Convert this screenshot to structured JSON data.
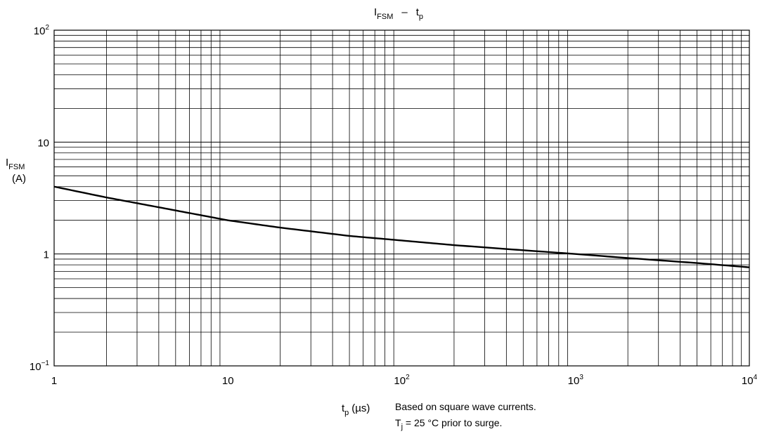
{
  "chart_data": {
    "type": "line",
    "title": {
      "main": "I",
      "main_sub": "FSM",
      "dash": "–",
      "var": "t",
      "var_sub": "p"
    },
    "x_scale": "log",
    "y_scale": "log",
    "xlim": [
      1,
      10000
    ],
    "ylim": [
      0.1,
      100
    ],
    "grid": true,
    "x_ticks": [
      {
        "value": 1,
        "base": "1",
        "exp": ""
      },
      {
        "value": 10,
        "base": "10",
        "exp": ""
      },
      {
        "value": 100,
        "base": "10",
        "exp": "2"
      },
      {
        "value": 1000,
        "base": "10",
        "exp": "3"
      },
      {
        "value": 10000,
        "base": "10",
        "exp": "4"
      }
    ],
    "y_ticks": [
      {
        "value": 0.1,
        "base": "10",
        "exp": "−1"
      },
      {
        "value": 1,
        "base": "1",
        "exp": ""
      },
      {
        "value": 10,
        "base": "10",
        "exp": ""
      },
      {
        "value": 100,
        "base": "10",
        "exp": "2"
      }
    ],
    "xlabel": {
      "var": "t",
      "sub": "p",
      "unit": "(µs)"
    },
    "ylabel": {
      "var": "I",
      "sub": "FSM",
      "unit": "(A)"
    },
    "series": [
      {
        "x": [
          1,
          2,
          5,
          10,
          20,
          50,
          100,
          200,
          500,
          1000,
          2000,
          5000,
          10000
        ],
        "y": [
          4.0,
          3.2,
          2.45,
          2.0,
          1.72,
          1.45,
          1.32,
          1.2,
          1.08,
          1.0,
          0.92,
          0.83,
          0.76
        ],
        "color": "#000000"
      }
    ],
    "notes": [
      "Based on square wave currents.",
      {
        "var": "T",
        "sub": "j",
        "text": " = 25 °C prior to surge."
      }
    ]
  }
}
